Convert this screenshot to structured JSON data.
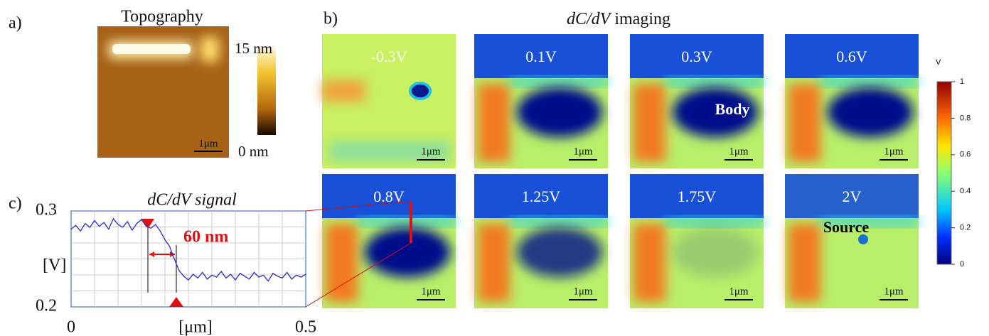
{
  "panel_a": {
    "label": "a)",
    "title": "Topography",
    "scale_bar": "1μm",
    "colorbar_max": "15 nm",
    "colorbar_min": "0 nm"
  },
  "panel_b": {
    "label": "b)",
    "title_italic": "dC/dV",
    "title_rest": "imaging",
    "scale_bar": "1μm",
    "voltages": [
      "-0.3V",
      "0.1V",
      "0.3V",
      "0.6V",
      "0.8V",
      "1.25V",
      "1.75V",
      "2V"
    ],
    "body_label": "Body",
    "source_label": "Source",
    "colorbar": {
      "unit": "V",
      "ylim": [
        0,
        1
      ],
      "yticks": [
        0,
        0.2,
        0.4,
        0.6,
        0.8,
        1
      ]
    }
  },
  "panel_c": {
    "label": "c)",
    "type": "line",
    "title": "dC/dV signal",
    "y_label": "[V]",
    "x_label": "[μm]",
    "annotation": "60 nm",
    "xlim": [
      0,
      0.5
    ],
    "ylim": [
      0.2,
      0.3
    ],
    "xticks": [
      0,
      0.5
    ],
    "yticks": [
      0.2,
      0.3
    ],
    "color": "#2b2bd0",
    "x": [
      0,
      0.01,
      0.02,
      0.03,
      0.04,
      0.05,
      0.06,
      0.07,
      0.08,
      0.09,
      0.1,
      0.11,
      0.12,
      0.13,
      0.14,
      0.15,
      0.16,
      0.17,
      0.18,
      0.19,
      0.2,
      0.21,
      0.22,
      0.23,
      0.24,
      0.25,
      0.26,
      0.27,
      0.28,
      0.29,
      0.3,
      0.31,
      0.32,
      0.33,
      0.34,
      0.35,
      0.36,
      0.37,
      0.38,
      0.39,
      0.4,
      0.41,
      0.42,
      0.43,
      0.44,
      0.45,
      0.46,
      0.47,
      0.48,
      0.49,
      0.5
    ],
    "values": [
      0.281,
      0.285,
      0.279,
      0.287,
      0.283,
      0.29,
      0.284,
      0.288,
      0.281,
      0.292,
      0.286,
      0.283,
      0.289,
      0.28,
      0.287,
      0.291,
      0.284,
      0.282,
      0.286,
      0.279,
      0.27,
      0.263,
      0.25,
      0.238,
      0.232,
      0.228,
      0.234,
      0.23,
      0.236,
      0.229,
      0.233,
      0.231,
      0.237,
      0.23,
      0.234,
      0.228,
      0.235,
      0.232,
      0.229,
      0.236,
      0.231,
      0.233,
      0.227,
      0.235,
      0.232,
      0.23,
      0.236,
      0.229,
      0.233,
      0.231,
      0.234
    ]
  }
}
